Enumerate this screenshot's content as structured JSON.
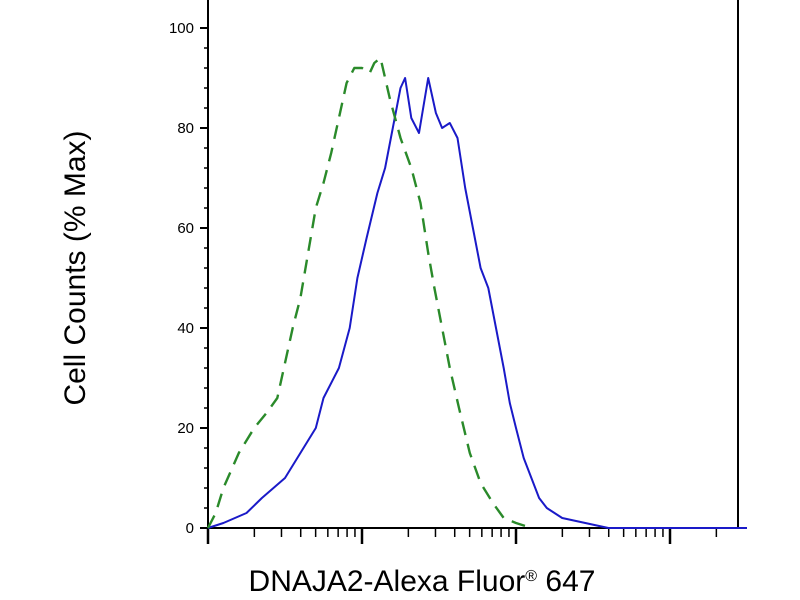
{
  "chart_data": {
    "type": "line",
    "xlabel_main": "DNAJA2-Alexa Fluor",
    "xlabel_reg": "®",
    "xlabel_tail": " 647",
    "ylabel": "Cell Counts (% Max)",
    "ylim": [
      0,
      100
    ],
    "yticks": [
      0,
      20,
      40,
      60,
      80,
      100
    ],
    "xscale": "log",
    "xlim_decades": [
      0,
      3.5
    ],
    "xtick_labels_shown": false,
    "grid": false,
    "legend": "none",
    "series": [
      {
        "color": "#1a1ac8",
        "style": "solid",
        "points": [
          [
            0.0,
            0
          ],
          [
            0.1,
            1
          ],
          [
            0.25,
            3
          ],
          [
            0.35,
            6
          ],
          [
            0.5,
            10
          ],
          [
            0.6,
            15
          ],
          [
            0.7,
            20
          ],
          [
            0.75,
            26
          ],
          [
            0.85,
            32
          ],
          [
            0.92,
            40
          ],
          [
            0.97,
            50
          ],
          [
            1.03,
            58
          ],
          [
            1.1,
            67
          ],
          [
            1.15,
            72
          ],
          [
            1.2,
            80
          ],
          [
            1.25,
            88
          ],
          [
            1.28,
            90
          ],
          [
            1.32,
            82
          ],
          [
            1.37,
            79
          ],
          [
            1.43,
            90
          ],
          [
            1.48,
            83
          ],
          [
            1.52,
            80
          ],
          [
            1.57,
            81
          ],
          [
            1.62,
            78
          ],
          [
            1.67,
            68
          ],
          [
            1.72,
            60
          ],
          [
            1.77,
            52
          ],
          [
            1.82,
            48
          ],
          [
            1.87,
            40
          ],
          [
            1.92,
            32
          ],
          [
            1.96,
            25
          ],
          [
            2.0,
            20
          ],
          [
            2.05,
            14
          ],
          [
            2.1,
            10
          ],
          [
            2.15,
            6
          ],
          [
            2.2,
            4
          ],
          [
            2.3,
            2
          ],
          [
            2.45,
            1
          ],
          [
            2.6,
            0
          ],
          [
            2.9,
            0
          ],
          [
            3.5,
            0
          ]
        ]
      },
      {
        "color": "#2a8a2a",
        "style": "dashed",
        "points": [
          [
            0.0,
            0
          ],
          [
            0.05,
            3
          ],
          [
            0.1,
            8
          ],
          [
            0.2,
            15
          ],
          [
            0.3,
            20
          ],
          [
            0.38,
            23
          ],
          [
            0.45,
            26
          ],
          [
            0.5,
            33
          ],
          [
            0.55,
            40
          ],
          [
            0.6,
            46
          ],
          [
            0.65,
            55
          ],
          [
            0.7,
            64
          ],
          [
            0.75,
            69
          ],
          [
            0.8,
            75
          ],
          [
            0.85,
            82
          ],
          [
            0.9,
            89
          ],
          [
            0.95,
            92
          ],
          [
            1.0,
            92
          ],
          [
            1.05,
            91
          ],
          [
            1.08,
            93
          ],
          [
            1.12,
            94
          ],
          [
            1.18,
            86
          ],
          [
            1.25,
            78
          ],
          [
            1.32,
            72
          ],
          [
            1.38,
            65
          ],
          [
            1.43,
            55
          ],
          [
            1.47,
            48
          ],
          [
            1.52,
            40
          ],
          [
            1.57,
            32
          ],
          [
            1.63,
            24
          ],
          [
            1.7,
            15
          ],
          [
            1.77,
            9
          ],
          [
            1.85,
            5
          ],
          [
            1.92,
            2
          ],
          [
            2.0,
            1
          ],
          [
            2.1,
            0
          ]
        ]
      }
    ]
  }
}
